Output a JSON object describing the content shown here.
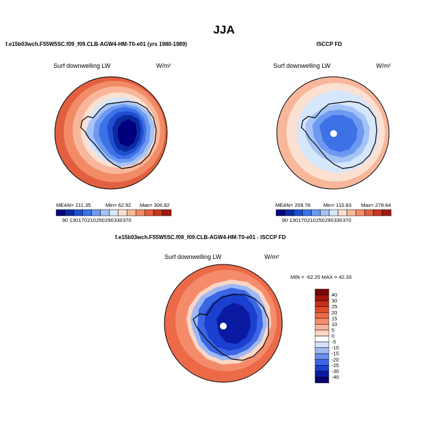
{
  "page_title": "JJA",
  "palette": {
    "abs": [
      "#00007f",
      "#0a2a9e",
      "#1f4fcf",
      "#3d72e6",
      "#6d99f0",
      "#a5c3f6",
      "#d6e6fb",
      "#fce0d2",
      "#f8b79a",
      "#f28c66",
      "#e2603f",
      "#c8381f",
      "#9e1b10"
    ],
    "diff": [
      "#08006e",
      "#0a1aa0",
      "#1b3fcf",
      "#3b66e3",
      "#6a8fee",
      "#9fb8f5",
      "#d2e0fb",
      "#ffffff",
      "#fcd6c6",
      "#f9b49a",
      "#f48c6c",
      "#ec6a48",
      "#e04c2c",
      "#c8301a",
      "#a0150c",
      "#7a0505"
    ]
  },
  "chart_data": [
    {
      "type": "heatmap",
      "title": "f.e15b03wch.F55W5SC.f09_f09.CLB-AGW4-HM-T0-e01 (yrs 1980-1989)",
      "field_label": "Surf downwelling LW",
      "units": "W/m²",
      "stats": {
        "mean": "MEAN= 211.35",
        "min": "Min= 62.92",
        "max": "Max= 306.82"
      },
      "colorbar_ticks": [
        "90",
        "130",
        "170",
        "210",
        "250",
        "290",
        "330",
        "370"
      ],
      "colorbar_orientation": "horizontal",
      "projection": "south-polar-stereographic"
    },
    {
      "type": "heatmap",
      "title": "ISCCP FD",
      "field_label": "Surf downwelling LW",
      "units": "W/m²",
      "stats": {
        "mean": "MEAN= 209.78",
        "min": "Min= 110.83",
        "max": "Max= 278.64"
      },
      "colorbar_ticks": [
        "90",
        "130",
        "170",
        "210",
        "250",
        "290",
        "330",
        "370"
      ],
      "colorbar_orientation": "horizontal",
      "projection": "south-polar-stereographic"
    },
    {
      "type": "heatmap",
      "title": "f.e15b03wch.F55W5SC.f09_f09.CLB-AGW4-HM-T0-e01 - ISCCP FD",
      "field_label": "Surf downwelling LW",
      "units": "W/m²",
      "stats_line": "MIN = -62.20 MAX =  42.33",
      "colorbar_ticks": [
        "40",
        "30",
        "25",
        "20",
        "15",
        "10",
        "5",
        "0",
        "-5",
        "-10",
        "-15",
        "-20",
        "-25",
        "-30",
        "-40"
      ],
      "colorbar_orientation": "vertical",
      "projection": "south-polar-stereographic"
    }
  ]
}
